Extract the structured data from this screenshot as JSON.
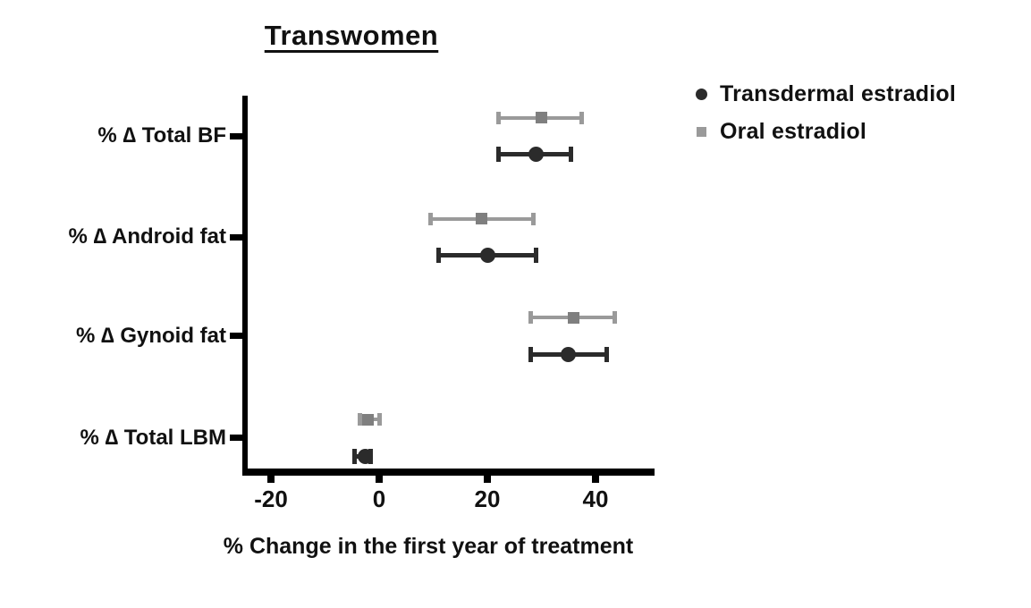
{
  "chart_data": {
    "type": "scatter",
    "title": "Transwomen",
    "xlabel": "% Change in the first year of treatment",
    "xlim": [
      -25,
      50
    ],
    "xticks": [
      -20,
      0,
      20,
      40
    ],
    "grid": false,
    "legend_position": "top-right",
    "categories": [
      "% ∆ Total BF",
      "% ∆ Android fat",
      "% ∆ Gynoid fat",
      "% ∆ Total LBM"
    ],
    "series": [
      {
        "name": "Transdermal estradiol",
        "marker": "circle",
        "row": "bottom",
        "color": "#2b2b2b",
        "marker_color": "#2b2b2b",
        "values": [
          29,
          20,
          35,
          -2.5
        ],
        "ci_low": [
          22,
          11,
          28,
          -4.5
        ],
        "ci_high": [
          35.5,
          29,
          42,
          -1.5
        ]
      },
      {
        "name": "Oral estradiol",
        "marker": "square",
        "row": "top",
        "color": "#9a9a9a",
        "marker_color": "#7f7f7f",
        "values": [
          30,
          19,
          36,
          -2
        ],
        "ci_low": [
          22,
          9.5,
          28,
          -3.5
        ],
        "ci_high": [
          37.5,
          28.5,
          43.5,
          0
        ]
      }
    ],
    "axis_color": "#000000"
  }
}
